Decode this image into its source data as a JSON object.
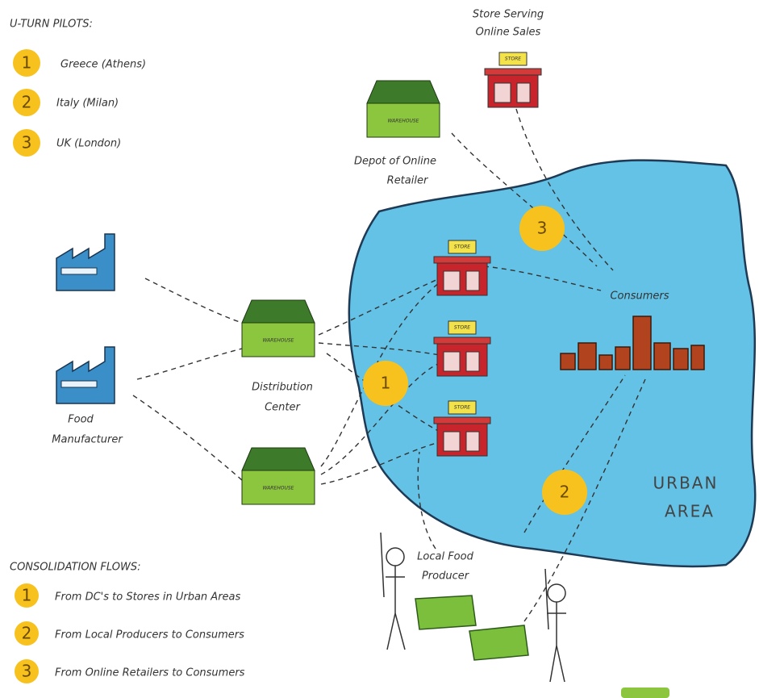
{
  "pilots_title": "U-TURN PILOTS:",
  "pilots": [
    {
      "number": 1,
      "label": "Greece (Athens)"
    },
    {
      "number": 2,
      "label": "Italy (Milan)"
    },
    {
      "number": 3,
      "label": "UK (London)"
    }
  ],
  "nodes": {
    "online_store": [
      "Store Serving",
      "Online Sales"
    ],
    "depot": [
      "Depot of Online",
      "Retailer"
    ],
    "consumers": "Consumers",
    "distribution_center": [
      "Distribution",
      "Center"
    ],
    "food_manufacturer": [
      "Food",
      "Manufacturer"
    ],
    "urban_area": [
      "URBAN",
      "AREA"
    ],
    "local_producer": [
      "Local Food",
      "Producer"
    ],
    "store_sign": "STORE",
    "warehouse_sign": "WAREHOUSE"
  },
  "flows_title": "CONSOLIDATION FLOWS:",
  "flows": [
    {
      "number": 1,
      "label": "From DC's to Stores in Urban Areas"
    },
    {
      "number": 2,
      "label": "From Local Producers to Consumers"
    },
    {
      "number": 3,
      "label": "From Online Retailers to Consumers"
    }
  ]
}
